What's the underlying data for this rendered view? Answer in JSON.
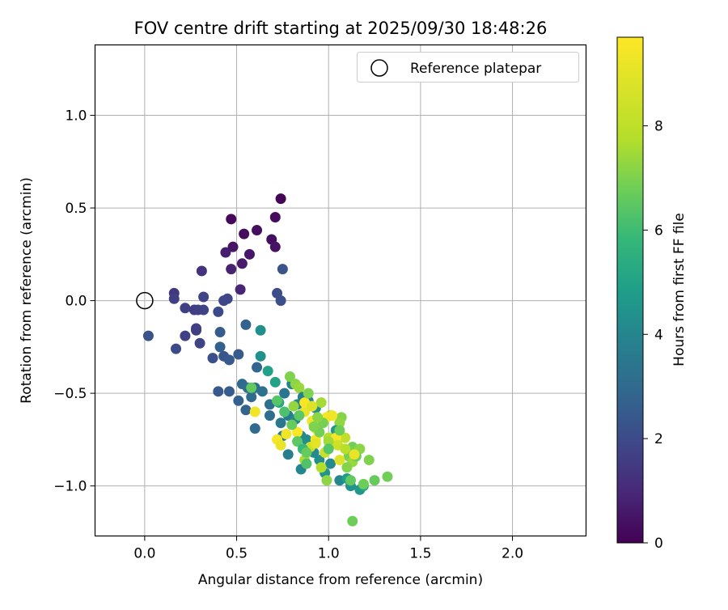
{
  "chart_data": {
    "type": "scatter",
    "title": "FOV centre drift starting at 2025/09/30 18:48:26",
    "xlabel": "Angular distance from reference (arcmin)",
    "ylabel": "Rotation from reference (arcmin)",
    "xlim": [
      -0.27,
      2.4
    ],
    "ylim": [
      -1.27,
      1.38
    ],
    "xticks": [
      0.0,
      0.5,
      1.0,
      1.5,
      2.0
    ],
    "yticks": [
      -1.0,
      -0.5,
      0.0,
      0.5,
      1.0
    ],
    "xtick_labels": [
      "0.0",
      "0.5",
      "1.0",
      "1.5",
      "2.0"
    ],
    "ytick_labels": [
      "−1.0",
      "−0.5",
      "0.0",
      "0.5",
      "1.0"
    ],
    "grid": true,
    "legend": {
      "position": "top-right",
      "entries": [
        "Reference platepar"
      ]
    },
    "reference_point": {
      "x": 0.0,
      "y": 0.0,
      "label": "Reference platepar"
    },
    "colorbar": {
      "label": "Hours from first FF file",
      "range": [
        0,
        9.7
      ],
      "ticks": [
        0,
        2,
        4,
        6,
        8
      ],
      "tick_labels": [
        "0",
        "2",
        "4",
        "6",
        "8"
      ],
      "colormap": "viridis"
    },
    "series": [
      {
        "name": "FOV centre",
        "points": [
          [
            0.74,
            0.55,
            0.1
          ],
          [
            0.47,
            0.44,
            0.2
          ],
          [
            0.71,
            0.45,
            0.3
          ],
          [
            0.54,
            0.36,
            0.3
          ],
          [
            0.61,
            0.38,
            0.4
          ],
          [
            0.69,
            0.33,
            0.4
          ],
          [
            0.48,
            0.29,
            0.5
          ],
          [
            0.71,
            0.29,
            0.5
          ],
          [
            0.57,
            0.25,
            0.6
          ],
          [
            0.44,
            0.26,
            0.8
          ],
          [
            0.53,
            0.2,
            0.7
          ],
          [
            0.47,
            0.17,
            0.9
          ],
          [
            0.52,
            0.06,
            1.0
          ],
          [
            0.31,
            0.16,
            1.4
          ],
          [
            0.75,
            0.17,
            2.5
          ],
          [
            0.72,
            0.04,
            2.3
          ],
          [
            0.74,
            0.0,
            2.4
          ],
          [
            0.16,
            0.04,
            1.6
          ],
          [
            0.16,
            0.01,
            1.8
          ],
          [
            0.32,
            0.02,
            2.0
          ],
          [
            0.43,
            0.0,
            2.1
          ],
          [
            0.45,
            0.01,
            2.1
          ],
          [
            0.22,
            -0.04,
            1.9
          ],
          [
            0.27,
            -0.05,
            1.7
          ],
          [
            0.32,
            -0.05,
            2.0
          ],
          [
            0.4,
            -0.06,
            2.2
          ],
          [
            0.29,
            -0.05,
            1.9
          ],
          [
            0.28,
            -0.15,
            1.8
          ],
          [
            0.28,
            -0.16,
            1.8
          ],
          [
            0.22,
            -0.19,
            1.9
          ],
          [
            0.02,
            -0.19,
            2.5
          ],
          [
            0.41,
            -0.17,
            2.8
          ],
          [
            0.3,
            -0.23,
            2.0
          ],
          [
            0.17,
            -0.26,
            2.2
          ],
          [
            0.41,
            -0.25,
            3.0
          ],
          [
            0.37,
            -0.31,
            2.4
          ],
          [
            0.43,
            -0.3,
            2.6
          ],
          [
            0.46,
            -0.32,
            2.7
          ],
          [
            0.51,
            -0.29,
            2.8
          ],
          [
            0.55,
            -0.13,
            3.0
          ],
          [
            0.63,
            -0.16,
            4.8
          ],
          [
            0.63,
            -0.3,
            4.9
          ],
          [
            0.61,
            -0.36,
            3.2
          ],
          [
            0.53,
            -0.45,
            3.3
          ],
          [
            0.56,
            -0.47,
            3.4
          ],
          [
            0.4,
            -0.49,
            2.7
          ],
          [
            0.46,
            -0.49,
            2.9
          ],
          [
            0.51,
            -0.54,
            3.0
          ],
          [
            0.55,
            -0.59,
            3.1
          ],
          [
            0.58,
            -0.52,
            3.4
          ],
          [
            0.6,
            -0.47,
            3.5
          ],
          [
            0.64,
            -0.49,
            3.6
          ],
          [
            0.68,
            -0.56,
            3.5
          ],
          [
            0.68,
            -0.62,
            3.4
          ],
          [
            0.6,
            -0.69,
            3.3
          ],
          [
            0.67,
            -0.38,
            5.5
          ],
          [
            0.71,
            -0.44,
            5.6
          ],
          [
            0.73,
            -0.55,
            5.7
          ],
          [
            0.76,
            -0.5,
            3.8
          ],
          [
            0.74,
            -0.66,
            3.9
          ],
          [
            0.78,
            -0.62,
            4.0
          ],
          [
            0.75,
            -0.73,
            4.1
          ],
          [
            0.78,
            -0.83,
            4.2
          ],
          [
            0.8,
            -0.45,
            4.3
          ],
          [
            0.83,
            -0.56,
            4.4
          ],
          [
            0.82,
            -0.64,
            4.5
          ],
          [
            0.85,
            -0.73,
            4.6
          ],
          [
            0.85,
            -0.91,
            4.4
          ],
          [
            0.88,
            -0.75,
            4.7
          ],
          [
            0.92,
            -0.82,
            4.6
          ],
          [
            0.95,
            -0.86,
            4.8
          ],
          [
            0.98,
            -0.93,
            5.0
          ],
          [
            1.01,
            -0.88,
            4.6
          ],
          [
            1.06,
            -0.97,
            4.5
          ],
          [
            1.1,
            -0.96,
            5.4
          ],
          [
            1.12,
            -1.0,
            4.9
          ],
          [
            1.17,
            -1.02,
            5.1
          ],
          [
            1.19,
            -1.0,
            5.6
          ],
          [
            0.79,
            -0.41,
            7.8
          ],
          [
            0.82,
            -0.45,
            8.0
          ],
          [
            0.84,
            -0.47,
            8.2
          ],
          [
            0.86,
            -0.52,
            4.2
          ],
          [
            0.89,
            -0.54,
            4.3
          ],
          [
            0.93,
            -0.58,
            4.8
          ],
          [
            0.96,
            -0.55,
            8.4
          ],
          [
            1.01,
            -0.62,
            8.3
          ],
          [
            1.07,
            -0.63,
            7.9
          ],
          [
            1.06,
            -0.66,
            8.1
          ],
          [
            1.04,
            -0.7,
            5.2
          ],
          [
            1.0,
            -0.74,
            8.6
          ],
          [
            1.09,
            -0.74,
            8.8
          ],
          [
            1.13,
            -0.79,
            7.6
          ],
          [
            1.17,
            -0.8,
            8.0
          ],
          [
            1.11,
            -0.84,
            7.7
          ],
          [
            1.13,
            -0.87,
            8.2
          ],
          [
            1.15,
            -0.84,
            7.5
          ],
          [
            1.22,
            -0.86,
            7.8
          ],
          [
            1.1,
            -0.9,
            7.9
          ],
          [
            1.25,
            -0.97,
            7.4
          ],
          [
            1.32,
            -0.95,
            7.6
          ],
          [
            1.19,
            -0.99,
            7.5
          ],
          [
            1.12,
            -0.97,
            7.3
          ],
          [
            0.99,
            -0.97,
            8.0
          ],
          [
            0.96,
            -0.9,
            8.6
          ],
          [
            0.98,
            -0.82,
            8.9
          ],
          [
            0.9,
            -0.79,
            9.0
          ],
          [
            0.87,
            -0.86,
            8.5
          ],
          [
            0.93,
            -0.69,
            9.3
          ],
          [
            0.91,
            -0.65,
            9.5
          ],
          [
            0.87,
            -0.6,
            9.4
          ],
          [
            0.87,
            -0.55,
            9.6
          ],
          [
            0.91,
            -0.57,
            9.2
          ],
          [
            0.99,
            -0.63,
            9.6
          ],
          [
            1.02,
            -0.62,
            9.5
          ],
          [
            1.04,
            -0.74,
            9.6
          ],
          [
            0.93,
            -0.75,
            9.6
          ],
          [
            0.93,
            -0.77,
            9.3
          ],
          [
            1.05,
            -0.78,
            9.0
          ],
          [
            1.09,
            -0.8,
            8.7
          ],
          [
            1.14,
            -0.83,
            9.4
          ],
          [
            1.06,
            -0.86,
            9.2
          ],
          [
            0.83,
            -0.71,
            9.7
          ],
          [
            0.77,
            -0.72,
            9.5
          ],
          [
            0.72,
            -0.75,
            9.6
          ],
          [
            0.74,
            -0.78,
            9.4
          ],
          [
            0.6,
            -0.6,
            9.5
          ],
          [
            0.58,
            -0.47,
            7.3
          ],
          [
            0.72,
            -0.54,
            7.1
          ],
          [
            0.8,
            -0.67,
            7.4
          ],
          [
            0.83,
            -0.76,
            7.2
          ],
          [
            0.86,
            -0.8,
            6.5
          ],
          [
            0.88,
            -0.88,
            7.0
          ],
          [
            0.95,
            -0.71,
            7.6
          ],
          [
            1.0,
            -0.76,
            8.3
          ],
          [
            0.97,
            -0.66,
            7.7
          ],
          [
            0.92,
            -0.68,
            7.8
          ],
          [
            1.06,
            -0.7,
            7.5
          ],
          [
            1.13,
            -1.19,
            7.5
          ],
          [
            0.89,
            -0.5,
            7.8
          ],
          [
            0.84,
            -0.62,
            7.2
          ],
          [
            0.88,
            -0.82,
            7.4
          ],
          [
            0.94,
            -0.63,
            8.0
          ],
          [
            1.0,
            -0.8,
            7.1
          ],
          [
            0.76,
            -0.6,
            6.9
          ],
          [
            0.81,
            -0.57,
            8.1
          ]
        ]
      }
    ]
  }
}
